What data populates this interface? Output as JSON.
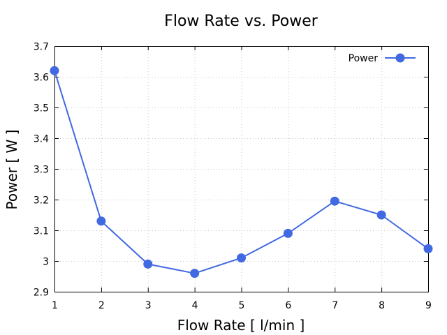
{
  "chart_data": {
    "type": "line",
    "title": "Flow Rate vs. Power",
    "xlabel": "Flow Rate [ l/min ]",
    "ylabel": "Power [ W ]",
    "xlim": [
      1,
      9
    ],
    "ylim": [
      2.9,
      3.7
    ],
    "xticks": [
      "1",
      "2",
      "3",
      "4",
      "5",
      "6",
      "7",
      "8",
      "9"
    ],
    "yticks": [
      "2.9",
      "3",
      "3.1",
      "3.2",
      "3.3",
      "3.4",
      "3.5",
      "3.6",
      "3.7"
    ],
    "grid": true,
    "legend_position": "top-right",
    "series": [
      {
        "name": "Power",
        "color": "#4169e1",
        "x": [
          1,
          2,
          3,
          4,
          5,
          6,
          7,
          8,
          9
        ],
        "y": [
          3.62,
          3.13,
          2.99,
          2.96,
          3.01,
          3.09,
          3.195,
          3.15,
          3.04
        ]
      }
    ]
  }
}
